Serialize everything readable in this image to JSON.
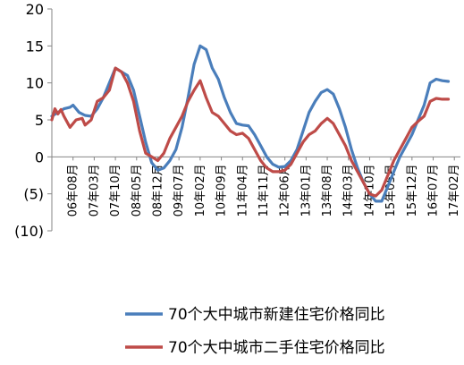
{
  "chart_data": {
    "type": "line",
    "title": "",
    "xlabel": "",
    "ylabel": "",
    "ylim": [
      -10,
      20
    ],
    "yticks": [
      20,
      15,
      10,
      5,
      0,
      -5,
      -10
    ],
    "ytick_labels": [
      "20",
      "15",
      "10",
      "5",
      "0",
      "(5)",
      "(10)"
    ],
    "x_start": "2006-01",
    "x_end": "2017-04",
    "xtick_labels": [
      "06年08月",
      "07年03月",
      "07年10月",
      "08年05月",
      "08年12月",
      "09年07月",
      "10年02月",
      "10年09月",
      "11年04月",
      "11年11月",
      "12年06月",
      "13年01月",
      "13年08月",
      "14年03月",
      "14年10月",
      "15年05月",
      "15年12月",
      "16年07月",
      "17年02月"
    ],
    "legend_position": "bottom",
    "grid": false,
    "series": [
      {
        "name": "70个大中城市新建住宅价格同比",
        "color": "#4a7ebb",
        "points": [
          [
            "2006-01",
            5.5
          ],
          [
            "2006-03",
            6.0
          ],
          [
            "2006-05",
            6.5
          ],
          [
            "2006-07",
            6.7
          ],
          [
            "2006-08",
            7.0
          ],
          [
            "2006-10",
            6.0
          ],
          [
            "2006-12",
            5.6
          ],
          [
            "2007-02",
            5.5
          ],
          [
            "2007-04",
            6.5
          ],
          [
            "2007-06",
            8.0
          ],
          [
            "2007-08",
            10.0
          ],
          [
            "2007-10",
            12.0
          ],
          [
            "2007-12",
            11.5
          ],
          [
            "2008-02",
            11.0
          ],
          [
            "2008-04",
            9.0
          ],
          [
            "2008-06",
            5.5
          ],
          [
            "2008-08",
            2.0
          ],
          [
            "2008-10",
            -0.8
          ],
          [
            "2008-12",
            -1.8
          ],
          [
            "2009-02",
            -1.5
          ],
          [
            "2009-04",
            -0.5
          ],
          [
            "2009-06",
            1.0
          ],
          [
            "2009-08",
            4.0
          ],
          [
            "2009-10",
            8.0
          ],
          [
            "2009-12",
            12.5
          ],
          [
            "2010-02",
            15.0
          ],
          [
            "2010-04",
            14.5
          ],
          [
            "2010-06",
            12.0
          ],
          [
            "2010-08",
            10.5
          ],
          [
            "2010-10",
            8.0
          ],
          [
            "2010-12",
            6.0
          ],
          [
            "2011-02",
            4.5
          ],
          [
            "2011-04",
            4.3
          ],
          [
            "2011-06",
            4.2
          ],
          [
            "2011-08",
            3.0
          ],
          [
            "2011-10",
            1.5
          ],
          [
            "2011-12",
            0.0
          ],
          [
            "2012-02",
            -1.0
          ],
          [
            "2012-04",
            -1.4
          ],
          [
            "2012-06",
            -1.3
          ],
          [
            "2012-08",
            -0.5
          ],
          [
            "2012-10",
            1.0
          ],
          [
            "2012-12",
            3.5
          ],
          [
            "2013-02",
            6.0
          ],
          [
            "2013-04",
            7.5
          ],
          [
            "2013-06",
            8.7
          ],
          [
            "2013-08",
            9.1
          ],
          [
            "2013-10",
            8.5
          ],
          [
            "2013-12",
            6.5
          ],
          [
            "2014-02",
            4.0
          ],
          [
            "2014-04",
            1.0
          ],
          [
            "2014-06",
            -1.5
          ],
          [
            "2014-08",
            -3.5
          ],
          [
            "2014-10",
            -5.0
          ],
          [
            "2014-12",
            -6.0
          ],
          [
            "2015-02",
            -6.0
          ],
          [
            "2015-04",
            -4.0
          ],
          [
            "2015-06",
            -2.0
          ],
          [
            "2015-08",
            0.0
          ],
          [
            "2015-10",
            1.5
          ],
          [
            "2015-12",
            3.0
          ],
          [
            "2016-02",
            5.0
          ],
          [
            "2016-04",
            7.0
          ],
          [
            "2016-06",
            10.0
          ],
          [
            "2016-08",
            10.5
          ],
          [
            "2016-10",
            10.3
          ],
          [
            "2016-12",
            10.2
          ]
        ]
      },
      {
        "name": "70个大中城市二手住宅价格同比",
        "color": "#be4b48",
        "points": [
          [
            "2006-01",
            5.0
          ],
          [
            "2006-02",
            6.5
          ],
          [
            "2006-03",
            5.8
          ],
          [
            "2006-04",
            6.4
          ],
          [
            "2006-05",
            5.5
          ],
          [
            "2006-07",
            4.0
          ],
          [
            "2006-09",
            5.0
          ],
          [
            "2006-11",
            5.2
          ],
          [
            "2006-12",
            4.3
          ],
          [
            "2007-02",
            5.0
          ],
          [
            "2007-04",
            7.5
          ],
          [
            "2007-06",
            8.0
          ],
          [
            "2007-08",
            9.0
          ],
          [
            "2007-10",
            12.0
          ],
          [
            "2007-12",
            11.5
          ],
          [
            "2008-02",
            10.0
          ],
          [
            "2008-04",
            7.5
          ],
          [
            "2008-06",
            3.5
          ],
          [
            "2008-08",
            0.5
          ],
          [
            "2008-10",
            0.0
          ],
          [
            "2008-12",
            -0.5
          ],
          [
            "2009-02",
            0.5
          ],
          [
            "2009-04",
            2.5
          ],
          [
            "2009-06",
            4.0
          ],
          [
            "2009-08",
            5.5
          ],
          [
            "2009-10",
            7.5
          ],
          [
            "2009-12",
            9.0
          ],
          [
            "2010-02",
            10.3
          ],
          [
            "2010-04",
            8.0
          ],
          [
            "2010-06",
            6.0
          ],
          [
            "2010-08",
            5.5
          ],
          [
            "2010-10",
            4.5
          ],
          [
            "2010-12",
            3.5
          ],
          [
            "2011-02",
            3.0
          ],
          [
            "2011-04",
            3.2
          ],
          [
            "2011-06",
            2.5
          ],
          [
            "2011-08",
            1.0
          ],
          [
            "2011-10",
            -0.5
          ],
          [
            "2011-12",
            -1.5
          ],
          [
            "2012-02",
            -2.0
          ],
          [
            "2012-04",
            -2.0
          ],
          [
            "2012-06",
            -1.8
          ],
          [
            "2012-08",
            -1.0
          ],
          [
            "2012-10",
            0.5
          ],
          [
            "2012-12",
            2.0
          ],
          [
            "2013-02",
            3.0
          ],
          [
            "2013-04",
            3.5
          ],
          [
            "2013-06",
            4.5
          ],
          [
            "2013-08",
            5.2
          ],
          [
            "2013-10",
            4.5
          ],
          [
            "2013-12",
            3.0
          ],
          [
            "2014-02",
            1.5
          ],
          [
            "2014-04",
            -0.5
          ],
          [
            "2014-06",
            -2.0
          ],
          [
            "2014-08",
            -3.5
          ],
          [
            "2014-10",
            -5.0
          ],
          [
            "2014-12",
            -5.3
          ],
          [
            "2015-02",
            -4.5
          ],
          [
            "2015-04",
            -2.5
          ],
          [
            "2015-06",
            -0.5
          ],
          [
            "2015-08",
            1.0
          ],
          [
            "2015-10",
            2.5
          ],
          [
            "2015-12",
            4.0
          ],
          [
            "2016-02",
            4.8
          ],
          [
            "2016-04",
            5.5
          ],
          [
            "2016-06",
            7.5
          ],
          [
            "2016-08",
            7.9
          ],
          [
            "2016-10",
            7.8
          ],
          [
            "2016-12",
            7.8
          ]
        ]
      }
    ]
  }
}
